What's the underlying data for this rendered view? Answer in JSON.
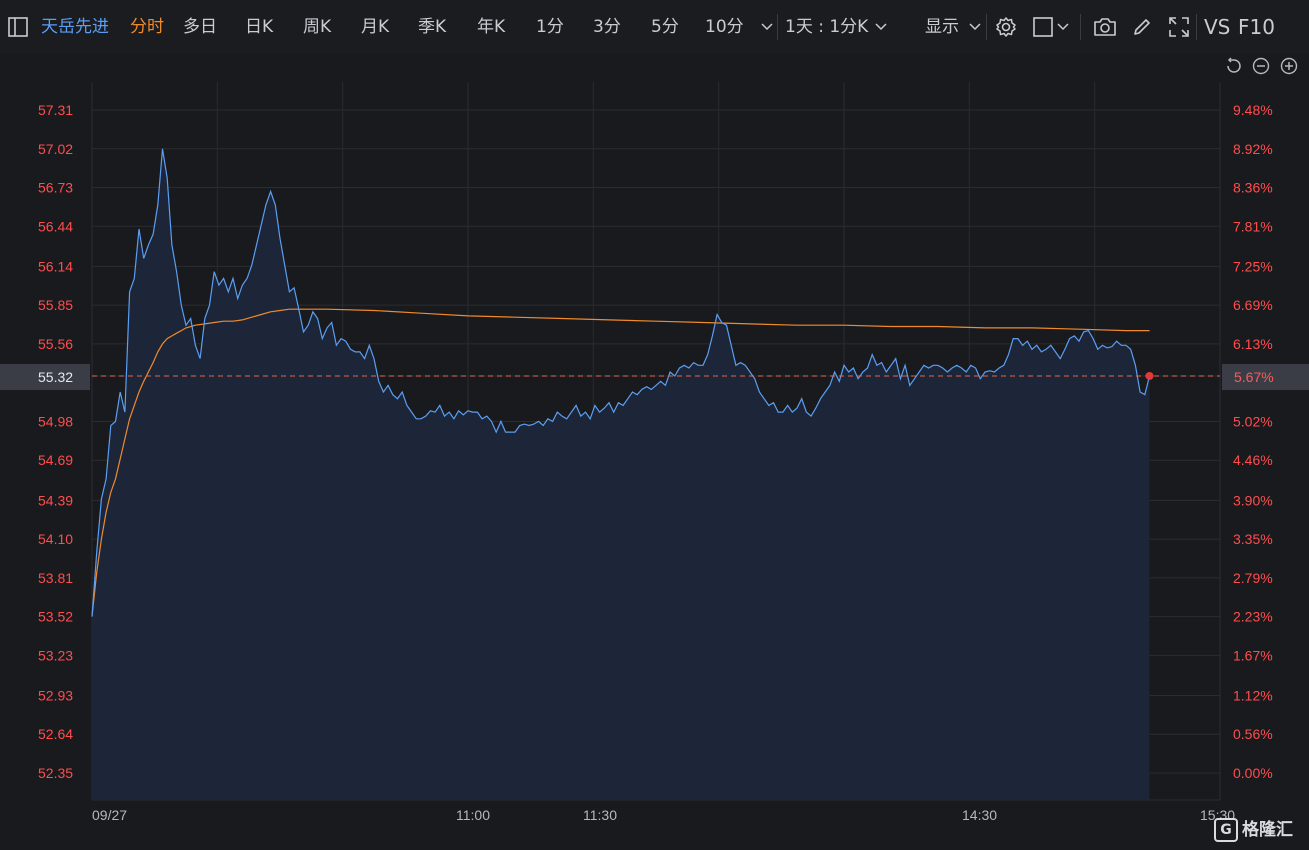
{
  "toolbar": {
    "stock_name": "天岳先进",
    "tabs": [
      "分时",
      "多日",
      "日K",
      "周K",
      "月K",
      "季K",
      "年K",
      "1分",
      "3分",
      "5分",
      "10分"
    ],
    "active_tab": "分时",
    "period_select": "1天 : 1分K",
    "display_menu": "显示",
    "vs_label": "VS",
    "f10_label": "F10",
    "icons": [
      "sidebar-toggle-icon",
      "chevron-down-icon",
      "settings-gear-icon",
      "checkbox-icon",
      "camera-icon",
      "pencil-icon",
      "fullscreen-icon",
      "reset-icon",
      "zoom-out-icon",
      "zoom-in-icon"
    ]
  },
  "current": {
    "price": "55.32",
    "percent": "5.67%"
  },
  "watermark": "格隆汇",
  "colors": {
    "price_line": "#5b9ef3",
    "avg_line": "#f08a2c",
    "axis_text": "#ff4d4d",
    "grid": "#2a2c31",
    "area": "#1c2638"
  },
  "chart_data": {
    "type": "line",
    "title": "",
    "xlabel": "",
    "ylabel": "",
    "x_ticks": [
      "09/27",
      "11:00",
      "11:30",
      "14:30",
      "15:30"
    ],
    "y_ticks_left": [
      "57.31",
      "57.02",
      "56.73",
      "56.44",
      "56.14",
      "55.85",
      "55.56",
      "55.32",
      "54.98",
      "54.69",
      "54.39",
      "54.10",
      "53.81",
      "53.52",
      "53.23",
      "52.93",
      "52.64",
      "52.35"
    ],
    "y_ticks_right": [
      "9.48%",
      "8.92%",
      "8.36%",
      "7.81%",
      "7.25%",
      "6.69%",
      "6.13%",
      "5.67%",
      "5.02%",
      "4.46%",
      "3.90%",
      "3.35%",
      "2.79%",
      "2.23%",
      "1.67%",
      "1.12%",
      "0.56%",
      "0.00%"
    ],
    "ylim": [
      52.35,
      57.31
    ],
    "x_range_minutes": [
      0,
      240
    ],
    "grid": true,
    "series": [
      {
        "name": "",
        "color": "#5b9ef3",
        "points": [
          [
            0,
            53.52
          ],
          [
            1,
            54.0
          ],
          [
            2,
            54.4
          ],
          [
            3,
            54.55
          ],
          [
            4,
            54.95
          ],
          [
            5,
            54.98
          ],
          [
            6,
            55.2
          ],
          [
            7,
            55.05
          ],
          [
            8,
            55.95
          ],
          [
            9,
            56.05
          ],
          [
            10,
            56.42
          ],
          [
            11,
            56.2
          ],
          [
            12,
            56.3
          ],
          [
            13,
            56.38
          ],
          [
            14,
            56.6
          ],
          [
            15,
            57.02
          ],
          [
            16,
            56.8
          ],
          [
            17,
            56.3
          ],
          [
            18,
            56.1
          ],
          [
            19,
            55.85
          ],
          [
            20,
            55.7
          ],
          [
            21,
            55.75
          ],
          [
            22,
            55.55
          ],
          [
            23,
            55.45
          ],
          [
            24,
            55.75
          ],
          [
            25,
            55.85
          ],
          [
            26,
            56.1
          ],
          [
            27,
            56.0
          ],
          [
            28,
            56.05
          ],
          [
            29,
            55.95
          ],
          [
            30,
            56.05
          ],
          [
            31,
            55.9
          ],
          [
            32,
            56.0
          ],
          [
            33,
            56.05
          ],
          [
            34,
            56.15
          ],
          [
            35,
            56.3
          ],
          [
            36,
            56.45
          ],
          [
            37,
            56.6
          ],
          [
            38,
            56.7
          ],
          [
            39,
            56.6
          ],
          [
            40,
            56.35
          ],
          [
            41,
            56.15
          ],
          [
            42,
            55.95
          ],
          [
            43,
            55.98
          ],
          [
            44,
            55.82
          ],
          [
            45,
            55.65
          ],
          [
            46,
            55.7
          ],
          [
            47,
            55.8
          ],
          [
            48,
            55.75
          ],
          [
            49,
            55.6
          ],
          [
            50,
            55.68
          ],
          [
            51,
            55.72
          ],
          [
            52,
            55.55
          ],
          [
            53,
            55.6
          ],
          [
            54,
            55.58
          ],
          [
            55,
            55.52
          ],
          [
            56,
            55.5
          ],
          [
            57,
            55.5
          ],
          [
            58,
            55.45
          ],
          [
            59,
            55.55
          ],
          [
            60,
            55.45
          ],
          [
            61,
            55.28
          ],
          [
            62,
            55.2
          ],
          [
            63,
            55.25
          ],
          [
            64,
            55.18
          ],
          [
            65,
            55.15
          ],
          [
            66,
            55.2
          ],
          [
            67,
            55.1
          ],
          [
            68,
            55.05
          ],
          [
            69,
            55.0
          ],
          [
            70,
            55.0
          ],
          [
            71,
            55.02
          ],
          [
            72,
            55.06
          ],
          [
            73,
            55.05
          ],
          [
            74,
            55.1
          ],
          [
            75,
            55.02
          ],
          [
            76,
            55.05
          ],
          [
            77,
            55.0
          ],
          [
            78,
            55.06
          ],
          [
            79,
            55.03
          ],
          [
            80,
            55.06
          ],
          [
            81,
            55.05
          ],
          [
            82,
            55.05
          ],
          [
            83,
            55.0
          ],
          [
            84,
            55.02
          ],
          [
            85,
            54.98
          ],
          [
            86,
            54.9
          ],
          [
            87,
            54.98
          ],
          [
            88,
            54.9
          ],
          [
            89,
            54.9
          ],
          [
            90,
            54.9
          ],
          [
            91,
            54.95
          ],
          [
            92,
            54.96
          ],
          [
            93,
            54.95
          ],
          [
            94,
            54.96
          ],
          [
            95,
            54.98
          ],
          [
            96,
            54.95
          ],
          [
            97,
            55.0
          ],
          [
            98,
            54.98
          ],
          [
            99,
            55.05
          ],
          [
            100,
            55.02
          ],
          [
            101,
            55.0
          ],
          [
            102,
            55.05
          ],
          [
            103,
            55.1
          ],
          [
            104,
            55.02
          ],
          [
            105,
            55.05
          ],
          [
            106,
            55.0
          ],
          [
            107,
            55.1
          ],
          [
            108,
            55.05
          ],
          [
            109,
            55.08
          ],
          [
            110,
            55.12
          ],
          [
            111,
            55.05
          ],
          [
            112,
            55.12
          ],
          [
            113,
            55.1
          ],
          [
            114,
            55.15
          ],
          [
            115,
            55.2
          ],
          [
            116,
            55.18
          ],
          [
            117,
            55.22
          ],
          [
            118,
            55.24
          ],
          [
            119,
            55.22
          ],
          [
            120,
            55.25
          ],
          [
            121,
            55.28
          ],
          [
            122,
            55.25
          ],
          [
            123,
            55.35
          ],
          [
            124,
            55.32
          ],
          [
            125,
            55.38
          ],
          [
            126,
            55.4
          ],
          [
            127,
            55.38
          ],
          [
            128,
            55.42
          ],
          [
            129,
            55.4
          ],
          [
            130,
            55.4
          ],
          [
            131,
            55.48
          ],
          [
            132,
            55.62
          ],
          [
            133,
            55.78
          ],
          [
            134,
            55.72
          ],
          [
            135,
            55.7
          ],
          [
            136,
            55.55
          ],
          [
            137,
            55.4
          ],
          [
            138,
            55.42
          ],
          [
            139,
            55.4
          ],
          [
            140,
            55.35
          ],
          [
            141,
            55.3
          ],
          [
            142,
            55.2
          ],
          [
            143,
            55.15
          ],
          [
            144,
            55.1
          ],
          [
            145,
            55.12
          ],
          [
            146,
            55.05
          ],
          [
            147,
            55.05
          ],
          [
            148,
            55.1
          ],
          [
            149,
            55.05
          ],
          [
            150,
            55.08
          ],
          [
            151,
            55.15
          ],
          [
            152,
            55.05
          ],
          [
            153,
            55.02
          ],
          [
            154,
            55.08
          ],
          [
            155,
            55.15
          ],
          [
            156,
            55.2
          ],
          [
            157,
            55.25
          ],
          [
            158,
            55.35
          ],
          [
            159,
            55.28
          ],
          [
            160,
            55.4
          ],
          [
            161,
            55.35
          ],
          [
            162,
            55.38
          ],
          [
            163,
            55.3
          ],
          [
            164,
            55.35
          ],
          [
            165,
            55.38
          ],
          [
            166,
            55.48
          ],
          [
            167,
            55.4
          ],
          [
            168,
            55.42
          ],
          [
            169,
            55.35
          ],
          [
            170,
            55.4
          ],
          [
            171,
            55.45
          ],
          [
            172,
            55.3
          ],
          [
            173,
            55.4
          ],
          [
            174,
            55.25
          ],
          [
            175,
            55.3
          ],
          [
            176,
            55.35
          ],
          [
            177,
            55.4
          ],
          [
            178,
            55.38
          ],
          [
            179,
            55.4
          ],
          [
            180,
            55.4
          ],
          [
            181,
            55.38
          ],
          [
            182,
            55.35
          ],
          [
            183,
            55.38
          ],
          [
            184,
            55.4
          ],
          [
            185,
            55.38
          ],
          [
            186,
            55.35
          ],
          [
            187,
            55.4
          ],
          [
            188,
            55.38
          ],
          [
            189,
            55.3
          ],
          [
            190,
            55.35
          ],
          [
            191,
            55.36
          ],
          [
            192,
            55.35
          ],
          [
            193,
            55.38
          ],
          [
            194,
            55.4
          ],
          [
            195,
            55.48
          ],
          [
            196,
            55.6
          ],
          [
            197,
            55.6
          ],
          [
            198,
            55.55
          ],
          [
            199,
            55.58
          ],
          [
            200,
            55.52
          ],
          [
            201,
            55.55
          ],
          [
            202,
            55.5
          ],
          [
            203,
            55.52
          ],
          [
            204,
            55.55
          ],
          [
            205,
            55.5
          ],
          [
            206,
            55.45
          ],
          [
            207,
            55.52
          ],
          [
            208,
            55.6
          ],
          [
            209,
            55.62
          ],
          [
            210,
            55.58
          ],
          [
            211,
            55.65
          ],
          [
            212,
            55.66
          ],
          [
            213,
            55.6
          ],
          [
            214,
            55.52
          ],
          [
            215,
            55.55
          ],
          [
            216,
            55.53
          ],
          [
            217,
            55.54
          ],
          [
            218,
            55.58
          ],
          [
            219,
            55.55
          ],
          [
            220,
            55.55
          ],
          [
            221,
            55.52
          ],
          [
            222,
            55.4
          ],
          [
            223,
            55.2
          ],
          [
            224,
            55.18
          ],
          [
            225,
            55.32
          ]
        ]
      },
      {
        "name": "",
        "color": "#f08a2c",
        "points": [
          [
            0,
            53.52
          ],
          [
            1,
            53.85
          ],
          [
            2,
            54.1
          ],
          [
            3,
            54.3
          ],
          [
            4,
            54.45
          ],
          [
            5,
            54.55
          ],
          [
            6,
            54.7
          ],
          [
            7,
            54.85
          ],
          [
            8,
            55.0
          ],
          [
            9,
            55.1
          ],
          [
            10,
            55.2
          ],
          [
            11,
            55.28
          ],
          [
            12,
            55.35
          ],
          [
            13,
            55.42
          ],
          [
            14,
            55.5
          ],
          [
            15,
            55.56
          ],
          [
            16,
            55.6
          ],
          [
            17,
            55.62
          ],
          [
            18,
            55.64
          ],
          [
            19,
            55.66
          ],
          [
            20,
            55.68
          ],
          [
            22,
            55.7
          ],
          [
            24,
            55.71
          ],
          [
            26,
            55.72
          ],
          [
            28,
            55.73
          ],
          [
            30,
            55.73
          ],
          [
            32,
            55.74
          ],
          [
            34,
            55.76
          ],
          [
            36,
            55.78
          ],
          [
            38,
            55.8
          ],
          [
            40,
            55.81
          ],
          [
            42,
            55.82
          ],
          [
            44,
            55.82
          ],
          [
            50,
            55.82
          ],
          [
            60,
            55.81
          ],
          [
            70,
            55.79
          ],
          [
            80,
            55.77
          ],
          [
            90,
            55.76
          ],
          [
            100,
            55.75
          ],
          [
            110,
            55.74
          ],
          [
            120,
            55.73
          ],
          [
            130,
            55.72
          ],
          [
            140,
            55.71
          ],
          [
            150,
            55.7
          ],
          [
            160,
            55.7
          ],
          [
            170,
            55.69
          ],
          [
            180,
            55.69
          ],
          [
            190,
            55.68
          ],
          [
            200,
            55.68
          ],
          [
            210,
            55.67
          ],
          [
            220,
            55.66
          ],
          [
            225,
            55.66
          ]
        ]
      }
    ]
  }
}
